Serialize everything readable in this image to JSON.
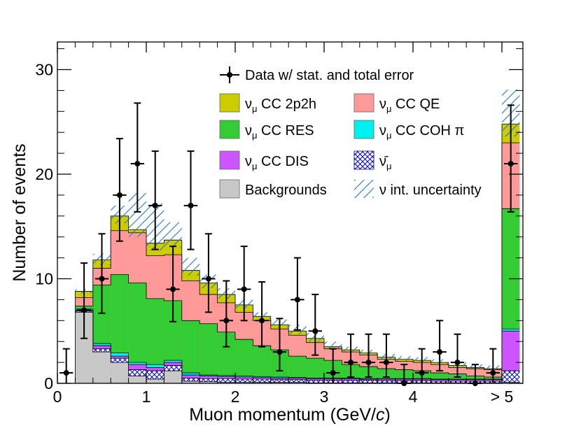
{
  "chart_data": {
    "type": "histogram-stacked",
    "xlabel": "Muon momentum (GeV/c)",
    "xlabel_parts": {
      "prefix": "Muon momentum (GeV/",
      "italic": "c",
      "suffix": ")"
    },
    "ylabel": "Number of events",
    "xlim": [
      0,
      5.25
    ],
    "ylim": [
      0,
      33
    ],
    "x_ticks": [
      {
        "value": 0,
        "label": "0"
      },
      {
        "value": 1,
        "label": "1"
      },
      {
        "value": 2,
        "label": "2"
      },
      {
        "value": 3,
        "label": "3"
      },
      {
        "value": 4,
        "label": "4"
      },
      {
        "value": 5,
        "label": "> 5"
      }
    ],
    "y_ticks": [
      {
        "value": 0,
        "label": "0"
      },
      {
        "value": 10,
        "label": "10"
      },
      {
        "value": 20,
        "label": "20"
      },
      {
        "value": 30,
        "label": "30"
      }
    ],
    "bin_edges": [
      0,
      0.2,
      0.4,
      0.6,
      0.8,
      1.0,
      1.2,
      1.4,
      1.6,
      1.8,
      2.0,
      2.2,
      2.4,
      2.6,
      2.8,
      3.0,
      3.2,
      3.4,
      3.6,
      3.8,
      4.0,
      4.2,
      4.4,
      4.6,
      4.8,
      5.0,
      5.2
    ],
    "stack_cumulative": [
      {
        "name": "Backgrounds",
        "color": "#c8c8c8",
        "values": [
          0,
          6.8,
          3.0,
          2.0,
          0.7,
          0.4,
          1.2,
          0.2,
          0.15,
          0.1,
          0.1,
          0.1,
          0.1,
          0.1,
          0.05,
          0.05,
          0.05,
          0.05,
          0.05,
          0.05,
          0.05,
          0.05,
          0.05,
          0.05,
          0.05,
          0.1
        ]
      },
      {
        "name": "numu-bar",
        "color": "#ffffff",
        "values": [
          0,
          6.9,
          3.3,
          2.4,
          1.3,
          1.2,
          1.7,
          0.5,
          0.45,
          0.45,
          0.4,
          0.4,
          0.35,
          0.35,
          0.3,
          0.3,
          0.3,
          0.3,
          0.25,
          0.25,
          0.25,
          0.2,
          0.2,
          0.2,
          0.2,
          1.2
        ]
      },
      {
        "name": "CC DIS",
        "color": "#cc55ff",
        "values": [
          0,
          7.0,
          3.6,
          2.6,
          1.8,
          1.5,
          2.0,
          0.8,
          0.7,
          0.65,
          0.6,
          0.55,
          0.5,
          0.5,
          0.45,
          0.45,
          0.45,
          0.4,
          0.4,
          0.4,
          0.4,
          0.35,
          0.35,
          0.35,
          0.35,
          5.0
        ]
      },
      {
        "name": "CC COH pi",
        "color": "#00f0f0",
        "values": [
          0,
          7.1,
          3.8,
          2.9,
          2.0,
          1.8,
          2.2,
          1.0,
          0.8,
          0.75,
          0.7,
          0.65,
          0.6,
          0.55,
          0.5,
          0.5,
          0.5,
          0.45,
          0.45,
          0.45,
          0.45,
          0.4,
          0.4,
          0.4,
          0.4,
          5.2
        ]
      },
      {
        "name": "CC RES",
        "color": "#33cc33",
        "values": [
          0,
          7.4,
          9.4,
          10.4,
          9.6,
          8.1,
          7.9,
          6.0,
          5.7,
          4.9,
          4.2,
          3.6,
          3.2,
          2.6,
          2.4,
          2.2,
          1.8,
          1.6,
          1.4,
          1.3,
          1.2,
          1.0,
          0.9,
          0.7,
          0.6,
          16.7
        ]
      },
      {
        "name": "CC QE",
        "color": "#ff9999",
        "values": [
          0,
          8.2,
          11.0,
          14.6,
          14.4,
          12.2,
          12.3,
          9.8,
          8.5,
          7.7,
          6.8,
          6.0,
          5.2,
          4.6,
          3.9,
          3.3,
          3.0,
          2.7,
          2.3,
          2.1,
          2.0,
          1.8,
          1.5,
          1.4,
          1.3,
          23.0
        ]
      },
      {
        "name": "CC 2p2h",
        "color": "#cccc00",
        "values": [
          0,
          8.8,
          11.8,
          16.0,
          14.7,
          13.4,
          13.7,
          10.8,
          9.6,
          8.5,
          7.5,
          6.4,
          5.6,
          5.0,
          4.3,
          3.5,
          3.2,
          2.9,
          2.5,
          2.3,
          2.2,
          2.0,
          1.7,
          1.5,
          1.4,
          24.8
        ]
      }
    ],
    "uncertainty_band": {
      "label": "ν int. uncertainty",
      "lower": [
        0,
        8.6,
        11.3,
        15.3,
        14.0,
        12.7,
        13.0,
        10.3,
        9.1,
        8.1,
        7.1,
        6.1,
        5.3,
        4.7,
        4.0,
        3.3,
        3.0,
        2.7,
        2.3,
        2.1,
        2.0,
        1.8,
        1.6,
        1.4,
        1.3,
        23.6
      ],
      "upper": [
        0,
        9.0,
        12.4,
        17.0,
        18.2,
        17.2,
        15.4,
        12.0,
        10.4,
        9.1,
        8.0,
        6.8,
        6.1,
        5.6,
        4.8,
        4.0,
        3.5,
        3.2,
        2.8,
        2.6,
        2.5,
        2.3,
        2.0,
        1.8,
        1.7,
        28.1
      ]
    },
    "data": {
      "label": "Data w/ stat. and total error",
      "x": [
        0.1,
        0.3,
        0.5,
        0.7,
        0.9,
        1.1,
        1.3,
        1.5,
        1.7,
        1.9,
        2.1,
        2.3,
        2.5,
        2.7,
        2.9,
        3.1,
        3.3,
        3.5,
        3.7,
        3.9,
        4.1,
        4.3,
        4.5,
        4.7,
        4.9,
        5.1
      ],
      "y": [
        1,
        7,
        10,
        18,
        21,
        17,
        9,
        17,
        10,
        6,
        9,
        6,
        3,
        8,
        5,
        1,
        2,
        2,
        2,
        0,
        1,
        3,
        2,
        0,
        1,
        21
      ],
      "err_low": [
        1,
        2.7,
        3.3,
        4.4,
        4.6,
        4.2,
        3.1,
        4.2,
        3.2,
        2.5,
        3.0,
        2.5,
        1.8,
        2.9,
        2.3,
        1.0,
        1.4,
        1.4,
        1.4,
        0,
        1.0,
        1.8,
        1.4,
        0,
        1.0,
        4.6
      ],
      "err_high": [
        2.3,
        4.5,
        4.3,
        5.4,
        5.8,
        5.2,
        4.1,
        5.2,
        4.3,
        3.8,
        4.1,
        3.7,
        3.2,
        4.0,
        3.5,
        2.3,
        2.7,
        2.7,
        2.7,
        1.8,
        2.3,
        3.0,
        2.7,
        1.8,
        2.3,
        5.6
      ]
    },
    "legend": {
      "data": "Data w/ stat. and total error",
      "entries": [
        {
          "key": "2p2h",
          "symbol": "ν",
          "sub": "μ",
          "text": " CC 2p2h",
          "color": "#cccc00",
          "style": "fill"
        },
        {
          "key": "qe",
          "symbol": "ν",
          "sub": "μ",
          "text": " CC QE",
          "color": "#ff9999",
          "style": "fill"
        },
        {
          "key": "res",
          "symbol": "ν",
          "sub": "μ",
          "text": " CC RES",
          "color": "#33cc33",
          "style": "fill"
        },
        {
          "key": "coh",
          "symbol": "ν",
          "sub": "μ",
          "text": " CC COH π",
          "color": "#00f0f0",
          "style": "fill"
        },
        {
          "key": "dis",
          "symbol": "ν",
          "sub": "μ",
          "text": " CC DIS",
          "color": "#cc55ff",
          "style": "fill"
        },
        {
          "key": "nubar",
          "symbol": "ν̄",
          "sub": "μ",
          "text": "",
          "color": "#0000cc",
          "style": "cross"
        },
        {
          "key": "bkg",
          "symbol": "",
          "sub": "",
          "text": "Backgrounds",
          "color": "#c8c8c8",
          "style": "fill"
        },
        {
          "key": "unc",
          "symbol": "",
          "sub": "",
          "text": "ν int. uncertainty",
          "color": "#1e78dc",
          "style": "hatch"
        }
      ]
    }
  }
}
